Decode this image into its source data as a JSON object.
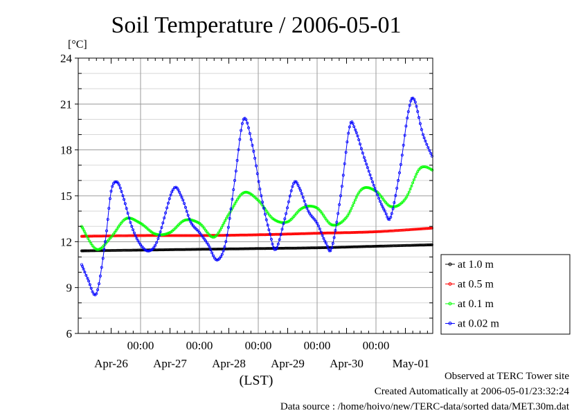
{
  "chart_data": {
    "type": "line",
    "title": "Soil Temperature / 2006-05-01",
    "ylabel": "[°C]",
    "xlabel": "(LST)",
    "ylim": [
      6,
      24
    ],
    "xlim": [
      0,
      6
    ],
    "yticks": [
      6,
      9,
      12,
      15,
      18,
      21,
      24
    ],
    "xtick_labels": [
      {
        "x": 1,
        "time": "00:00",
        "date": "Apr-26"
      },
      {
        "x": 2,
        "time": "00:00",
        "date": "Apr-27"
      },
      {
        "x": 3,
        "time": "00:00",
        "date": "Apr-28"
      },
      {
        "x": 4,
        "time": "00:00",
        "date": "Apr-29"
      },
      {
        "x": 5,
        "time": "00:00",
        "date": "Apr-30"
      },
      {
        "x": 6,
        "time": "",
        "date": "May-01"
      }
    ],
    "grid": true,
    "legend_position": "right",
    "series": [
      {
        "name": "at 1.0 m",
        "color": "#000000",
        "points": [
          [
            0,
            11.4
          ],
          [
            1,
            11.45
          ],
          [
            2,
            11.5
          ],
          [
            3,
            11.55
          ],
          [
            4,
            11.6
          ],
          [
            5,
            11.7
          ],
          [
            6,
            11.8
          ]
        ]
      },
      {
        "name": "at 0.5 m",
        "color": "#ff0000",
        "points": [
          [
            0,
            12.35
          ],
          [
            1,
            12.4
          ],
          [
            2,
            12.4
          ],
          [
            3,
            12.45
          ],
          [
            4,
            12.55
          ],
          [
            5,
            12.65
          ],
          [
            6,
            12.9
          ]
        ]
      },
      {
        "name": "at 0.1 m",
        "color": "#00ff00",
        "points": [
          [
            0,
            13.0
          ],
          [
            0.25,
            11.5
          ],
          [
            0.5,
            12.3
          ],
          [
            0.75,
            13.5
          ],
          [
            1.0,
            13.2
          ],
          [
            1.25,
            12.5
          ],
          [
            1.5,
            12.6
          ],
          [
            1.75,
            13.4
          ],
          [
            2.0,
            13.2
          ],
          [
            2.25,
            12.3
          ],
          [
            2.5,
            13.8
          ],
          [
            2.75,
            15.2
          ],
          [
            3.0,
            14.7
          ],
          [
            3.25,
            13.5
          ],
          [
            3.5,
            13.3
          ],
          [
            3.75,
            14.2
          ],
          [
            4.0,
            14.2
          ],
          [
            4.25,
            13.1
          ],
          [
            4.5,
            13.6
          ],
          [
            4.75,
            15.4
          ],
          [
            5.0,
            15.3
          ],
          [
            5.25,
            14.3
          ],
          [
            5.5,
            14.8
          ],
          [
            5.75,
            16.8
          ],
          [
            6.0,
            16.6
          ]
        ]
      },
      {
        "name": "at 0.02 m",
        "color": "#0000ff",
        "points": [
          [
            0,
            10.5
          ],
          [
            0.1,
            9.6
          ],
          [
            0.25,
            8.6
          ],
          [
            0.4,
            12.0
          ],
          [
            0.5,
            15.3
          ],
          [
            0.6,
            15.9
          ],
          [
            0.7,
            15.0
          ],
          [
            0.85,
            13.0
          ],
          [
            1.0,
            11.8
          ],
          [
            1.15,
            11.4
          ],
          [
            1.3,
            12.2
          ],
          [
            1.55,
            15.4
          ],
          [
            1.7,
            14.9
          ],
          [
            1.85,
            13.3
          ],
          [
            2.0,
            12.6
          ],
          [
            2.15,
            11.8
          ],
          [
            2.3,
            10.8
          ],
          [
            2.45,
            12.0
          ],
          [
            2.6,
            16.0
          ],
          [
            2.75,
            20.0
          ],
          [
            2.9,
            18.3
          ],
          [
            3.05,
            15.0
          ],
          [
            3.2,
            12.5
          ],
          [
            3.3,
            11.5
          ],
          [
            3.45,
            13.5
          ],
          [
            3.6,
            15.8
          ],
          [
            3.7,
            15.5
          ],
          [
            3.85,
            14.0
          ],
          [
            4.0,
            13.2
          ],
          [
            4.15,
            11.9
          ],
          [
            4.25,
            11.6
          ],
          [
            4.4,
            15.0
          ],
          [
            4.55,
            19.5
          ],
          [
            4.65,
            19.3
          ],
          [
            4.8,
            17.5
          ],
          [
            5.0,
            15.3
          ],
          [
            5.15,
            14.0
          ],
          [
            5.25,
            13.6
          ],
          [
            5.4,
            16.5
          ],
          [
            5.55,
            20.5
          ],
          [
            5.65,
            21.3
          ],
          [
            5.8,
            19.0
          ],
          [
            6.0,
            17.2
          ]
        ]
      }
    ]
  },
  "footer": {
    "line1": "Observed at TERC Tower site",
    "line2": "Created Automatically at 2006-05-01/23:32:24",
    "line3": "Data source : /home/hoivo/new/TERC-data/sorted  data/MET.30m.dat"
  }
}
